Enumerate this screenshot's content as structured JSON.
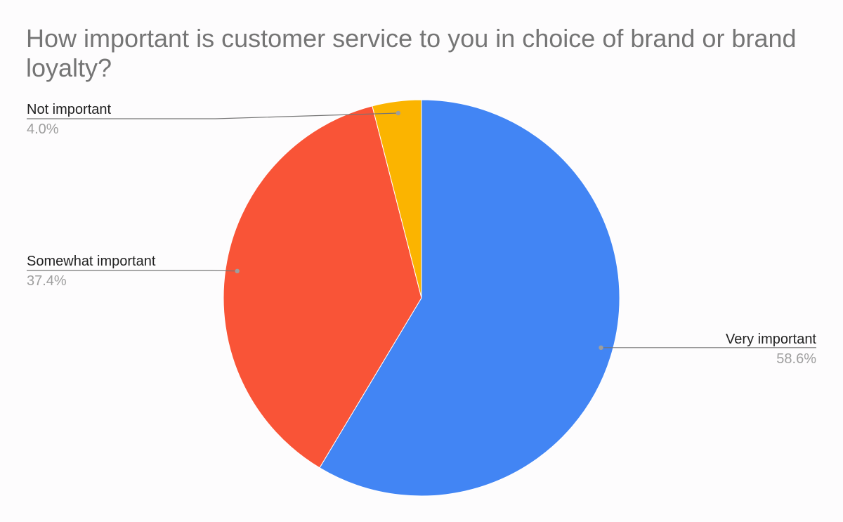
{
  "chart_data": {
    "type": "pie",
    "title": "How important is customer service to you in choice of brand or brand loyalty?",
    "slices": [
      {
        "label": "Very important",
        "value": 58.6,
        "display": "58.6%",
        "color": "#4285f4",
        "label_side": "right"
      },
      {
        "label": "Somewhat important",
        "value": 37.4,
        "display": "37.4%",
        "color": "#f95437",
        "label_side": "left"
      },
      {
        "label": "Not important",
        "value": 4.0,
        "display": "4.0%",
        "color": "#fbb400",
        "label_side": "left"
      }
    ],
    "start": "12 o'clock",
    "direction": "clockwise",
    "legend": "leader-line labels"
  }
}
